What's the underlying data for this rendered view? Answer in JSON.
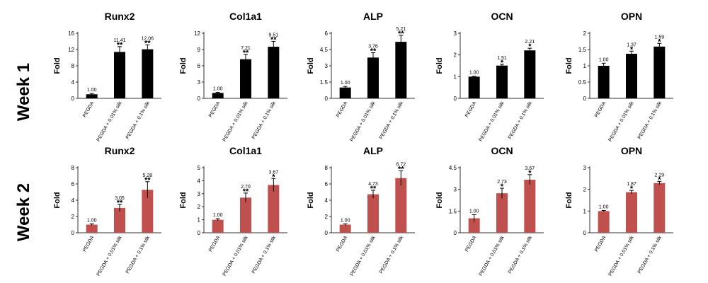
{
  "figure": {
    "row_labels": [
      "Week 1",
      "Week 2"
    ],
    "colors": {
      "week1": "#000000",
      "week2": "#c0504d"
    }
  },
  "chart_data": [
    {
      "type": "bar",
      "title": "Runx2",
      "ylabel": "Fold",
      "categories": [
        "PEGDA",
        "PEGDA + 0.01% silk",
        "PEGDA + 0.1% silk"
      ],
      "values": [
        1.0,
        11.41,
        12.06
      ],
      "errors": [
        0.2,
        1.3,
        1.1
      ],
      "labels": [
        "1.00",
        "11.41",
        "12.06"
      ],
      "significance": [
        "",
        "**",
        "**"
      ],
      "ylim": [
        0,
        16
      ],
      "yticks": [
        0,
        4,
        8,
        12,
        16
      ],
      "color": "#000000",
      "row": 0
    },
    {
      "type": "bar",
      "title": "Col1a1",
      "ylabel": "Fold",
      "categories": [
        "PEGDA",
        "PEGDA + 0.01% silk",
        "PEGDA + 0.1% silk"
      ],
      "values": [
        1.0,
        7.21,
        9.51
      ],
      "errors": [
        0.1,
        0.9,
        1.0
      ],
      "labels": [
        "1.00",
        "7.21",
        "9.51"
      ],
      "significance": [
        "",
        "**",
        "**"
      ],
      "ylim": [
        0,
        12
      ],
      "yticks": [
        0,
        3,
        6,
        9,
        12
      ],
      "color": "#000000",
      "row": 0
    },
    {
      "type": "bar",
      "title": "ALP",
      "ylabel": "Fold",
      "categories": [
        "PEGDA",
        "PEGDA + 0.01% silk",
        "PEGDA + 0.1% silk"
      ],
      "values": [
        1.0,
        3.76,
        5.21
      ],
      "errors": [
        0.1,
        0.45,
        0.6
      ],
      "labels": [
        "1.00",
        "3.76",
        "5.21"
      ],
      "significance": [
        "",
        "**",
        "**"
      ],
      "ylim": [
        0,
        6
      ],
      "yticks": [
        "0",
        "1.5",
        "3",
        "4.5",
        "6"
      ],
      "color": "#000000",
      "row": 0
    },
    {
      "type": "bar",
      "title": "OCN",
      "ylabel": "Fold",
      "categories": [
        "PEGDA",
        "PEGDA + 0.01% silk",
        "PEGDA + 0.1% silk"
      ],
      "values": [
        1.0,
        1.51,
        2.21
      ],
      "errors": [
        0.02,
        0.06,
        0.1
      ],
      "labels": [
        "1.00",
        "1.51",
        "2.21"
      ],
      "significance": [
        "",
        "*",
        "*"
      ],
      "ylim": [
        0,
        3
      ],
      "yticks": [
        0,
        1,
        2,
        3
      ],
      "color": "#000000",
      "row": 0
    },
    {
      "type": "bar",
      "title": "OPN",
      "ylabel": "Fold",
      "categories": [
        "PEGDA",
        "PEGDA + 0.01% silk",
        "PEGDA + 0.1% silk"
      ],
      "values": [
        1.0,
        1.37,
        1.59
      ],
      "errors": [
        0.08,
        0.08,
        0.1
      ],
      "labels": [
        "1.00",
        "1.37",
        "1.59"
      ],
      "significance": [
        "",
        "*",
        "*"
      ],
      "ylim": [
        0,
        2
      ],
      "yticks": [
        "0",
        "0.5",
        "1",
        "1.5",
        "2"
      ],
      "color": "#000000",
      "row": 0
    },
    {
      "type": "bar",
      "title": "Runx2",
      "ylabel": "Fold",
      "categories": [
        "PEGDA",
        "PEGDA + 0.01% silk",
        "PEGDA + 0.1% silk"
      ],
      "values": [
        1.0,
        3.05,
        5.28
      ],
      "errors": [
        0.1,
        0.45,
        1.0
      ],
      "labels": [
        "1.00",
        "3.05",
        "5.28"
      ],
      "significance": [
        "",
        "**",
        "**"
      ],
      "ylim": [
        0,
        8
      ],
      "yticks": [
        0,
        2,
        4,
        6,
        8
      ],
      "color": "#c0504d",
      "row": 1
    },
    {
      "type": "bar",
      "title": "Col1a1",
      "ylabel": "Fold",
      "categories": [
        "PEGDA",
        "PEGDA + 0.01% silk",
        "PEGDA + 0.1% silk"
      ],
      "values": [
        1.0,
        2.7,
        3.67
      ],
      "errors": [
        0.08,
        0.35,
        0.5
      ],
      "labels": [
        "1.00",
        "2.70",
        "3.67"
      ],
      "significance": [
        "",
        "**",
        "*"
      ],
      "ylim": [
        0,
        5
      ],
      "yticks": [
        0,
        1,
        2,
        3,
        4,
        5
      ],
      "color": "#c0504d",
      "row": 1
    },
    {
      "type": "bar",
      "title": "ALP",
      "ylabel": "Fold",
      "categories": [
        "PEGDA",
        "PEGDA + 0.01% silk",
        "PEGDA + 0.1% silk"
      ],
      "values": [
        1.0,
        4.73,
        6.72
      ],
      "errors": [
        0.1,
        0.5,
        0.9
      ],
      "labels": [
        "1.00",
        "4.73",
        "6.72"
      ],
      "significance": [
        "",
        "**",
        "**"
      ],
      "ylim": [
        0,
        8
      ],
      "yticks": [
        0,
        2,
        4,
        6,
        8
      ],
      "color": "#c0504d",
      "row": 1
    },
    {
      "type": "bar",
      "title": "OCN",
      "ylabel": "Fold",
      "categories": [
        "PEGDA",
        "PEGDA + 0.01% silk",
        "PEGDA + 0.1% silk"
      ],
      "values": [
        1.0,
        2.73,
        3.67
      ],
      "errors": [
        0.25,
        0.35,
        0.35
      ],
      "labels": [
        "1.00",
        "2.73",
        "3.67"
      ],
      "significance": [
        "",
        "*",
        "*"
      ],
      "ylim": [
        0,
        4.5
      ],
      "yticks": [
        "0",
        "1.5",
        "3",
        "4.5"
      ],
      "color": "#c0504d",
      "row": 1
    },
    {
      "type": "bar",
      "title": "OPN",
      "ylabel": "Fold",
      "categories": [
        "PEGDA",
        "PEGDA + 0.01% silk",
        "PEGDA + 0.1% silk"
      ],
      "values": [
        1.0,
        1.87,
        2.29
      ],
      "errors": [
        0.03,
        0.08,
        0.08
      ],
      "labels": [
        "1.00",
        "1.87",
        "2.29"
      ],
      "significance": [
        "",
        "*",
        "*"
      ],
      "ylim": [
        0,
        3
      ],
      "yticks": [
        0,
        1,
        2,
        3
      ],
      "color": "#c0504d",
      "row": 1
    }
  ]
}
